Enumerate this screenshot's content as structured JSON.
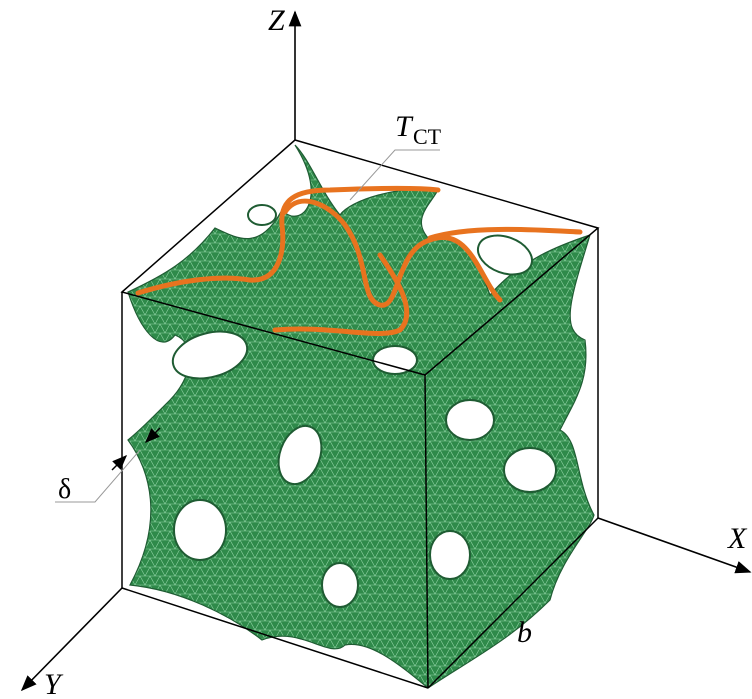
{
  "labels": {
    "z_axis": "Z",
    "x_axis": "X",
    "y_axis": "Y",
    "thickness_symbol": "T",
    "thickness_subscript": "CT",
    "wall_thickness": "δ",
    "edge_length": "b"
  }
}
